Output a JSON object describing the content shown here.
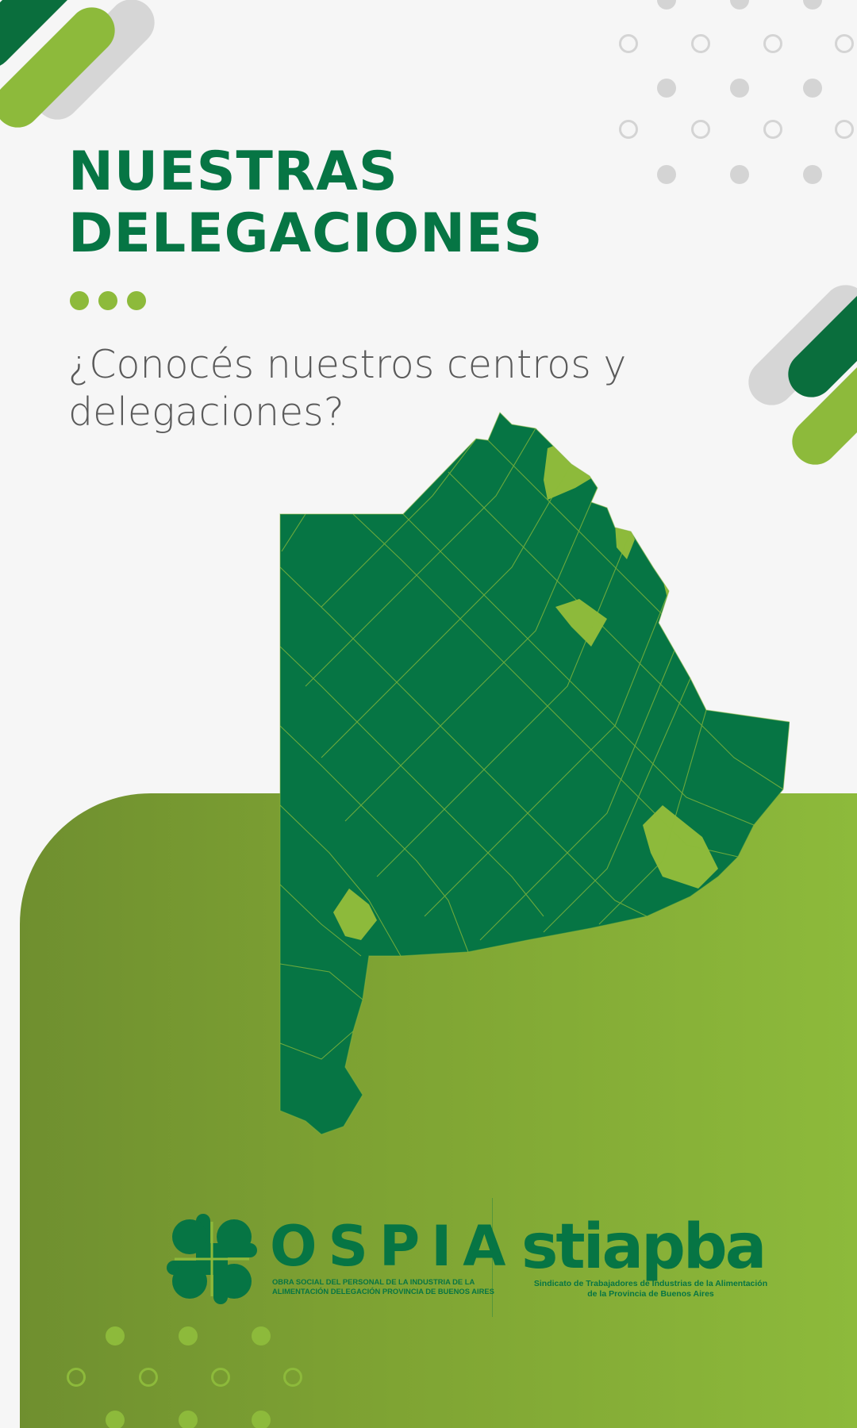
{
  "header": {
    "title_line1": "NUESTRAS",
    "title_line2": "DELEGACIONES",
    "subtitle_line1": "¿Conocés nuestros centros y",
    "subtitle_line2": "delegaciones?"
  },
  "map": {
    "region": "Buenos Aires province districts",
    "base_color": "#067544",
    "highlight_color": "#8dba3b"
  },
  "logos": {
    "ospia": {
      "name": "OSPIA",
      "subtitle_line1": "OBRA SOCIAL DEL PERSONAL DE LA INDUSTRIA DE LA",
      "subtitle_line2": "ALIMENTACIÓN DELEGACIÓN PROVINCIA DE BUENOS AIRES"
    },
    "stiapba": {
      "name": "stiapba",
      "subtitle_line1": "Sindicato de Trabajadores de Industrias de la Alimentación",
      "subtitle_line2": "de la Provincia de Buenos Aires"
    }
  },
  "colors": {
    "brand_green": "#067544",
    "accent_green": "#8dba3b",
    "text_grey": "#5a5a5a",
    "decor_grey": "#d4d4d4"
  }
}
